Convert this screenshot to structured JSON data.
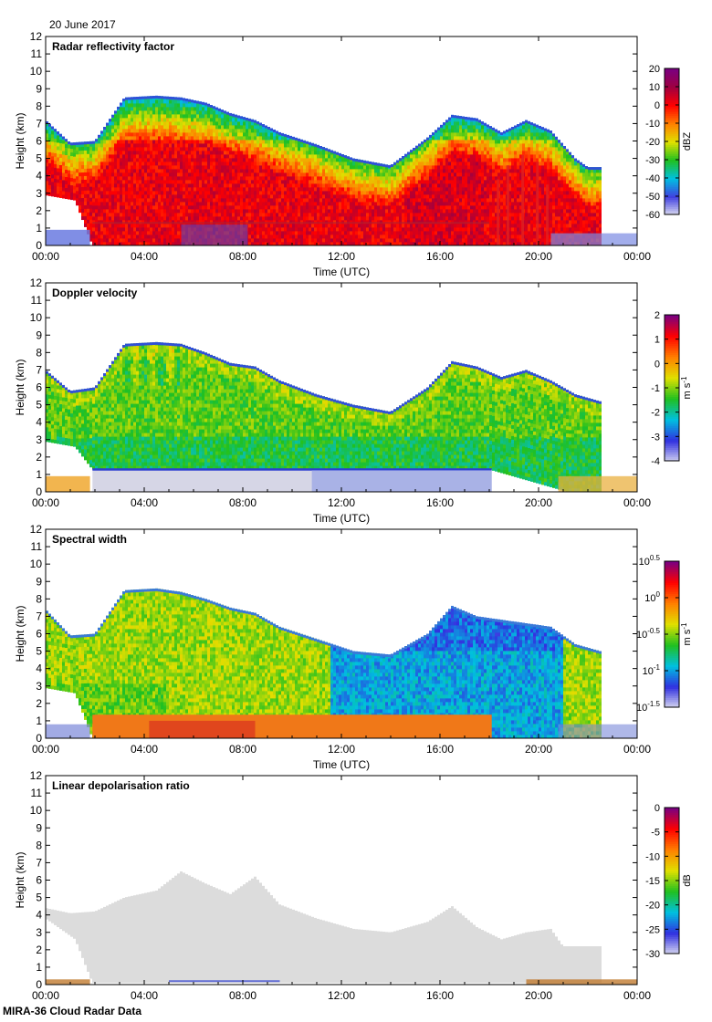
{
  "date": "20 June 2017",
  "footer": "MIRA-36 Cloud Radar Data",
  "chart_data": [
    {
      "type": "heatmap",
      "title": "Radar reflectivity factor",
      "xlabel": "Time (UTC)",
      "ylabel": "Height (km)",
      "x_ticks": [
        "00:00",
        "04:00",
        "08:00",
        "12:00",
        "16:00",
        "20:00",
        "00:00"
      ],
      "y_ticks": [
        "0",
        "1",
        "2",
        "3",
        "4",
        "5",
        "6",
        "7",
        "8",
        "9",
        "10",
        "11",
        "12"
      ],
      "xlim_hours": [
        0,
        24
      ],
      "ylim_km": [
        0,
        12
      ],
      "colorbar": {
        "label": "dBZ",
        "ticks": [
          "20",
          "10",
          "0",
          "-10",
          "-20",
          "-30",
          "-40",
          "-50",
          "-60"
        ],
        "range": [
          -60,
          20
        ],
        "colors": [
          "#dcdcf0",
          "#4040e0",
          "#00c0e0",
          "#20c020",
          "#e0e000",
          "#ff8000",
          "#ff0000",
          "#a00040",
          "#7a0080"
        ]
      },
      "color_key": "reflectivity",
      "echo": {
        "cloud_top_km": [
          [
            0.0,
            7.2
          ],
          [
            1.0,
            5.9
          ],
          [
            2.0,
            6.0
          ],
          [
            3.2,
            8.5
          ],
          [
            4.5,
            8.6
          ],
          [
            5.5,
            8.5
          ],
          [
            6.5,
            8.2
          ],
          [
            7.5,
            7.6
          ],
          [
            8.5,
            7.2
          ],
          [
            9.5,
            6.5
          ],
          [
            11.0,
            5.8
          ],
          [
            12.5,
            5.0
          ],
          [
            14.0,
            4.6
          ],
          [
            15.5,
            6.2
          ],
          [
            16.5,
            7.5
          ],
          [
            17.5,
            7.3
          ],
          [
            18.5,
            6.5
          ],
          [
            19.5,
            7.2
          ],
          [
            20.5,
            6.6
          ],
          [
            21.5,
            5.0
          ],
          [
            22.0,
            4.5
          ]
        ],
        "cloud_base_km": [
          [
            0.0,
            2.9
          ],
          [
            1.2,
            2.6
          ],
          [
            1.9,
            0.0
          ],
          [
            18.0,
            0.0
          ],
          [
            21.2,
            0.0
          ]
        ]
      }
    },
    {
      "type": "heatmap",
      "title": "Doppler velocity",
      "xlabel": "Time (UTC)",
      "ylabel": "Height (km)",
      "x_ticks": [
        "00:00",
        "04:00",
        "08:00",
        "12:00",
        "16:00",
        "20:00",
        "00:00"
      ],
      "y_ticks": [
        "0",
        "1",
        "2",
        "3",
        "4",
        "5",
        "6",
        "7",
        "8",
        "9",
        "10",
        "11",
        "12"
      ],
      "xlim_hours": [
        0,
        24
      ],
      "ylim_km": [
        0,
        12
      ],
      "colorbar": {
        "label": "m s",
        "label_sup": "-1",
        "ticks": [
          "2",
          "1",
          "0",
          "-1",
          "-2",
          "-3",
          "-4"
        ],
        "range": [
          -4,
          2
        ],
        "colors": [
          "#d0d0f0",
          "#3030e0",
          "#00c0e0",
          "#20c020",
          "#e0e000",
          "#ff8000",
          "#ff0000",
          "#7a0080"
        ]
      },
      "color_key": "velocity",
      "echo": {
        "cloud_top_km": [
          [
            0.0,
            7.0
          ],
          [
            1.0,
            5.8
          ],
          [
            2.0,
            6.0
          ],
          [
            3.2,
            8.5
          ],
          [
            4.5,
            8.6
          ],
          [
            5.5,
            8.5
          ],
          [
            6.5,
            8.0
          ],
          [
            7.5,
            7.4
          ],
          [
            8.5,
            7.2
          ],
          [
            9.5,
            6.4
          ],
          [
            11.0,
            5.6
          ],
          [
            12.5,
            5.0
          ],
          [
            14.0,
            4.6
          ],
          [
            15.5,
            6.0
          ],
          [
            16.5,
            7.5
          ],
          [
            17.5,
            7.2
          ],
          [
            18.5,
            6.6
          ],
          [
            19.5,
            7.0
          ],
          [
            20.5,
            6.4
          ],
          [
            21.5,
            5.6
          ],
          [
            22.5,
            5.2
          ]
        ],
        "cloud_base_km": [
          [
            0.0,
            2.9
          ],
          [
            1.2,
            2.6
          ],
          [
            1.9,
            1.3
          ],
          [
            18.0,
            1.3
          ],
          [
            21.2,
            0.0
          ]
        ]
      }
    },
    {
      "type": "heatmap",
      "title": "Spectral width",
      "xlabel": "Time (UTC)",
      "ylabel": "Height (km)",
      "x_ticks": [
        "00:00",
        "04:00",
        "08:00",
        "12:00",
        "16:00",
        "20:00",
        "00:00"
      ],
      "y_ticks": [
        "0",
        "1",
        "2",
        "3",
        "4",
        "5",
        "6",
        "7",
        "8",
        "9",
        "10",
        "11",
        "12"
      ],
      "xlim_hours": [
        0,
        24
      ],
      "ylim_km": [
        0,
        12
      ],
      "colorbar": {
        "label": "m s",
        "label_sup": "-1",
        "ticks": [
          "10^0.5",
          "10^0",
          "10^-0.5",
          "10^-1",
          "10^-1.5"
        ],
        "range": [
          -1.5,
          0.5
        ],
        "colors": [
          "#d8d8f0",
          "#3030e0",
          "#00c0e0",
          "#20c020",
          "#e0e000",
          "#ff8000",
          "#ff0000",
          "#7a0080"
        ]
      },
      "color_key": "width",
      "echo": {
        "cloud_top_km": [
          [
            0.0,
            7.4
          ],
          [
            1.0,
            5.9
          ],
          [
            2.0,
            6.0
          ],
          [
            3.2,
            8.5
          ],
          [
            4.5,
            8.6
          ],
          [
            5.5,
            8.4
          ],
          [
            6.5,
            8.0
          ],
          [
            7.5,
            7.5
          ],
          [
            8.5,
            7.2
          ],
          [
            9.5,
            6.4
          ],
          [
            11.0,
            5.7
          ],
          [
            12.5,
            5.0
          ],
          [
            14.0,
            4.8
          ],
          [
            15.5,
            6.0
          ],
          [
            16.5,
            7.6
          ],
          [
            17.5,
            7.0
          ],
          [
            18.5,
            6.8
          ],
          [
            19.5,
            6.6
          ],
          [
            20.5,
            6.4
          ],
          [
            21.5,
            5.4
          ],
          [
            22.5,
            5.0
          ]
        ],
        "cloud_base_km": [
          [
            0.0,
            2.9
          ],
          [
            1.2,
            2.6
          ],
          [
            1.9,
            0.0
          ],
          [
            18.0,
            0.0
          ],
          [
            21.2,
            0.0
          ]
        ]
      }
    },
    {
      "type": "heatmap",
      "title": "Linear depolarisation ratio",
      "xlabel": "Time (UTC)",
      "ylabel": "Height (km)",
      "x_ticks": [
        "00:00",
        "04:00",
        "08:00",
        "12:00",
        "16:00",
        "20:00",
        "00:00"
      ],
      "y_ticks": [
        "0",
        "1",
        "2",
        "3",
        "4",
        "5",
        "6",
        "7",
        "8",
        "9",
        "10",
        "11",
        "12"
      ],
      "xlim_hours": [
        0,
        24
      ],
      "ylim_km": [
        0,
        12
      ],
      "colorbar": {
        "label": "dB",
        "ticks": [
          "0",
          "-5",
          "-10",
          "-15",
          "-20",
          "-25",
          "-30"
        ],
        "range": [
          -30,
          0
        ],
        "colors": [
          "#d8d8f0",
          "#3030e0",
          "#00c0e0",
          "#20c020",
          "#e0e000",
          "#ff8000",
          "#ff0000",
          "#7a0080"
        ]
      },
      "color_key": "ldr",
      "echo": {
        "cloud_top_km": [
          [
            0.0,
            4.4
          ],
          [
            1.0,
            4.1
          ],
          [
            2.0,
            4.2
          ],
          [
            3.2,
            5.0
          ],
          [
            4.5,
            5.4
          ],
          [
            5.5,
            6.5
          ],
          [
            6.5,
            5.8
          ],
          [
            7.5,
            5.2
          ],
          [
            8.5,
            6.2
          ],
          [
            9.5,
            4.6
          ],
          [
            11.0,
            3.8
          ],
          [
            12.5,
            3.2
          ],
          [
            14.0,
            3.0
          ],
          [
            15.5,
            3.6
          ],
          [
            16.5,
            4.5
          ],
          [
            17.5,
            3.3
          ],
          [
            18.5,
            2.6
          ],
          [
            19.5,
            3.0
          ],
          [
            20.5,
            3.2
          ],
          [
            21.0,
            2.2
          ]
        ],
        "cloud_base_km": [
          [
            0.0,
            3.8
          ],
          [
            1.2,
            2.6
          ],
          [
            1.9,
            0.1
          ],
          [
            18.0,
            0.1
          ],
          [
            21.0,
            0.1
          ]
        ]
      }
    }
  ]
}
